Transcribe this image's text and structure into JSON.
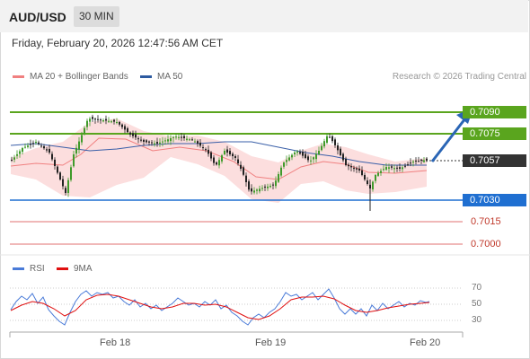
{
  "header": {
    "symbol": "AUD/USD",
    "timeframe": "30 MIN"
  },
  "datetime": "Friday, February 20, 2026 12:47:56 AM CET",
  "legend": {
    "ma20": {
      "label": "MA 20 + Bollinger Bands",
      "color": "#f08080"
    },
    "ma50": {
      "label": "MA 50",
      "color": "#2c5aa0"
    }
  },
  "credit": "Research © 2026 Trading Central",
  "levels": {
    "resistance_1": "0.7090",
    "resistance_2": "0.7075",
    "last_price": "0.7057",
    "support_1": "0.7030",
    "support_2": "0.7015",
    "support_3": "0.7000"
  },
  "colors": {
    "resistance": "#5aa51e",
    "support": "#1f6fd1",
    "extra_support": "#e07070",
    "price_tag": "#333333",
    "bull": "#3f9a2a",
    "bear": "#222222",
    "bollinger": "#fcdede"
  },
  "rsi": {
    "legend_rsi": "RSI",
    "legend_ma": "9MA",
    "rsi_color": "#4a7bd8",
    "ma_color": "#e01010",
    "levels": [
      "70",
      "50",
      "30"
    ]
  },
  "xaxis": {
    "labels": [
      "Feb 18",
      "Feb 19",
      "Feb 20"
    ]
  }
}
